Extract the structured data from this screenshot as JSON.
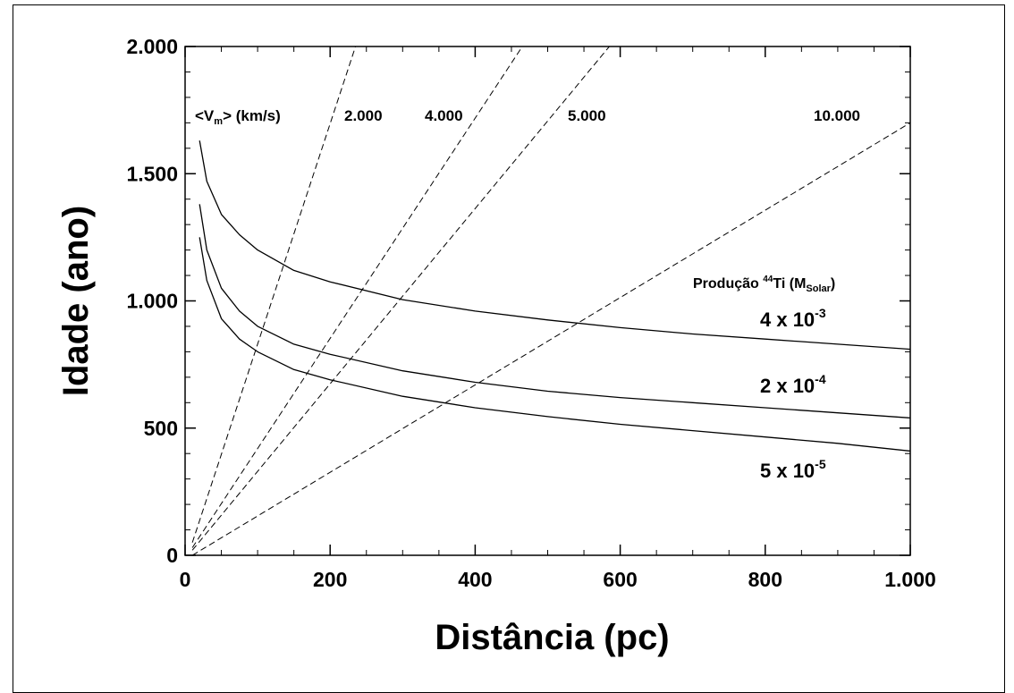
{
  "chart_data": {
    "type": "line",
    "xlabel": "Distância (pc)",
    "ylabel": "Idade (ano)",
    "xlim": [
      0,
      1000
    ],
    "ylim": [
      0,
      2000
    ],
    "x_ticks": [
      0,
      200,
      400,
      600,
      800,
      1000
    ],
    "x_tick_labels": [
      "0",
      "200",
      "400",
      "600",
      "800",
      "1.000"
    ],
    "y_ticks": [
      0,
      500,
      1000,
      1500,
      2000
    ],
    "y_tick_labels": [
      "0",
      "500",
      "1.000",
      "1.500",
      "2.000"
    ],
    "velocity_label": {
      "prefix": "<V",
      "sub": "m",
      "suffix": "> (km/s)"
    },
    "velocity_lines": [
      {
        "label": "2.000",
        "x": [
          10,
          235
        ],
        "y": [
          50,
          2000
        ]
      },
      {
        "label": "4.000",
        "x": [
          10,
          465
        ],
        "y": [
          30,
          2000
        ]
      },
      {
        "label": "5.000",
        "x": [
          10,
          585
        ],
        "y": [
          20,
          2000
        ]
      },
      {
        "label": "10.000",
        "x": [
          10,
          1000
        ],
        "y": [
          0,
          1700
        ]
      }
    ],
    "production_title": {
      "prefix": "Produção ",
      "sup": "44",
      "mid": "Ti (M",
      "sub": "Solar",
      "suffix": ")"
    },
    "series": [
      {
        "name": "4 x 10-3",
        "label_base": "4 x 10",
        "label_exp": "-3",
        "x": [
          20,
          30,
          50,
          75,
          100,
          150,
          200,
          300,
          400,
          500,
          600,
          700,
          800,
          900,
          1000
        ],
        "y": [
          1630,
          1470,
          1340,
          1260,
          1200,
          1120,
          1075,
          1005,
          960,
          925,
          895,
          870,
          850,
          830,
          810
        ]
      },
      {
        "name": "2 x 10-4",
        "label_base": "2 x 10",
        "label_exp": "-4",
        "x": [
          20,
          30,
          50,
          75,
          100,
          150,
          200,
          300,
          400,
          500,
          600,
          700,
          800,
          900,
          1000
        ],
        "y": [
          1380,
          1200,
          1050,
          960,
          900,
          830,
          790,
          725,
          680,
          645,
          620,
          600,
          580,
          560,
          540
        ]
      },
      {
        "name": "5 x 10-5",
        "label_base": "5 x 10",
        "label_exp": "-5",
        "x": [
          20,
          30,
          50,
          75,
          100,
          150,
          200,
          300,
          400,
          500,
          600,
          700,
          800,
          900,
          1000
        ],
        "y": [
          1250,
          1080,
          930,
          850,
          800,
          730,
          690,
          625,
          580,
          545,
          515,
          490,
          465,
          440,
          410
        ]
      }
    ]
  }
}
